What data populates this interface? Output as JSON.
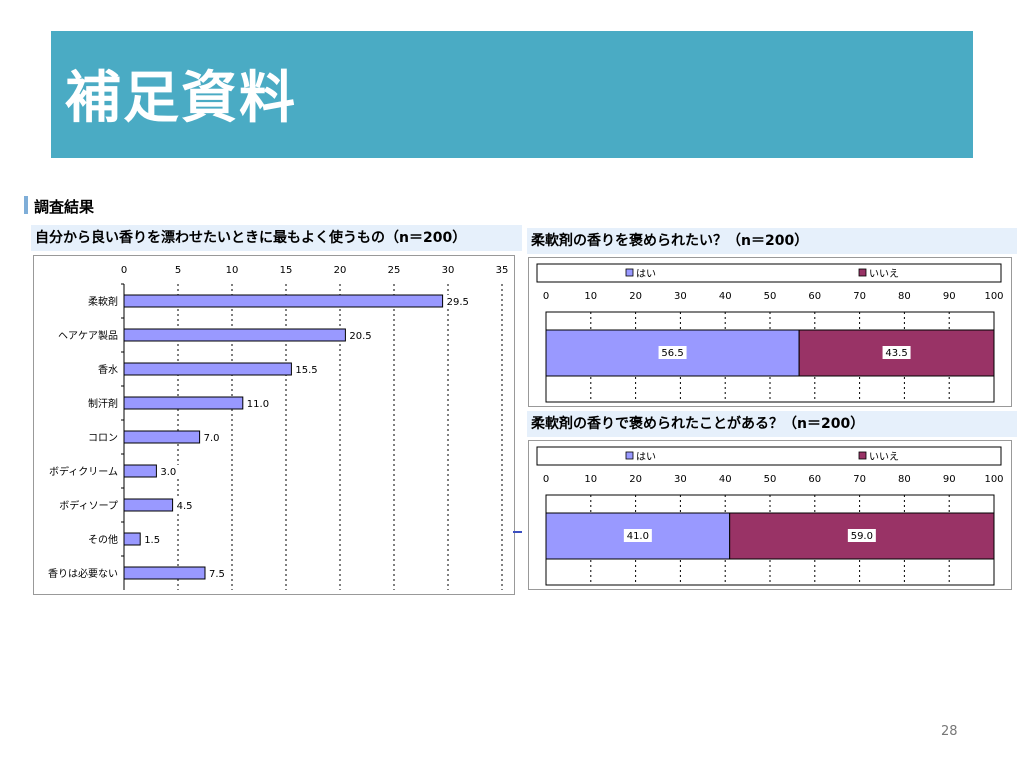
{
  "slide": {
    "title": "補足資料",
    "section": "調査結果",
    "page_number": "28"
  },
  "colors": {
    "banner": "#4aabc4",
    "bar_primary": "#9999ff",
    "bar_yes": "#9999ff",
    "bar_no": "#993366"
  },
  "chart_data": [
    {
      "type": "bar",
      "orientation": "horizontal",
      "title": "自分から良い香りを漂わせたいときに最もよく使うもの（n＝200）",
      "categories": [
        "柔軟剤",
        "ヘアケア製品",
        "香水",
        "制汗剤",
        "コロン",
        "ボディクリーム",
        "ボディソープ",
        "その他",
        "香りは必要ない"
      ],
      "values": [
        29.5,
        20.5,
        15.5,
        11.0,
        7.0,
        3.0,
        4.5,
        1.5,
        7.5
      ],
      "value_labels": [
        "29.5",
        "20.5",
        "15.5",
        "11.0",
        "7.0",
        "3.0",
        "4.5",
        "1.5",
        "7.5"
      ],
      "xlim": [
        0,
        35
      ],
      "ticks": [
        "0",
        "5",
        "10",
        "15",
        "20",
        "25",
        "30",
        "35"
      ],
      "grid": "vertical-dashed",
      "legend": "none"
    },
    {
      "type": "bar",
      "orientation": "horizontal-stacked",
      "title": "柔軟剤の香りを褒められたい？（n＝200）",
      "series": [
        {
          "name": "はい",
          "values": [
            56.5
          ]
        },
        {
          "name": "いいえ",
          "values": [
            43.5
          ]
        }
      ],
      "value_labels": [
        "56.5",
        "43.5"
      ],
      "xlim": [
        0,
        100
      ],
      "ticks": [
        "0",
        "10",
        "20",
        "30",
        "40",
        "50",
        "60",
        "70",
        "80",
        "90",
        "100"
      ],
      "legend": "top"
    },
    {
      "type": "bar",
      "orientation": "horizontal-stacked",
      "title": "柔軟剤の香りで褒められたことがある？（n＝200）",
      "series": [
        {
          "name": "はい",
          "values": [
            41.0
          ]
        },
        {
          "name": "いいえ",
          "values": [
            59.0
          ]
        }
      ],
      "value_labels": [
        "41.0",
        "59.0"
      ],
      "xlim": [
        0,
        100
      ],
      "ticks": [
        "0",
        "10",
        "20",
        "30",
        "40",
        "50",
        "60",
        "70",
        "80",
        "90",
        "100"
      ],
      "legend": "top"
    }
  ]
}
